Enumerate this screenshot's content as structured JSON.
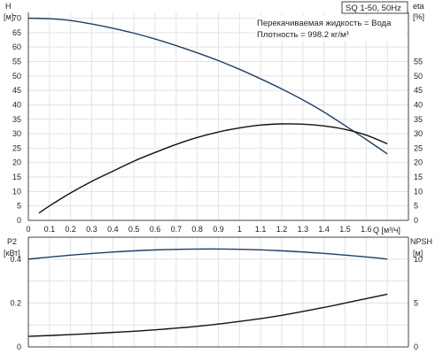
{
  "colors": {
    "dark_blue": "#1f3f66",
    "black": "#111111",
    "grid": "#e3e3e3",
    "axis": "#444444"
  },
  "chart_data": [
    {
      "type": "line",
      "title": "SQ 1-50, 50Hz",
      "annotations": [
        "Перекачиваемая жидкость = Вода",
        "Плотность = 998.2 кг/м³"
      ],
      "xlabel": "Q [м³/ч]",
      "x_unit_label": "Q [м³/ч]",
      "xlim": [
        0,
        1.8
      ],
      "x_ticks": [
        0,
        0.1,
        0.2,
        0.3,
        0.4,
        0.5,
        0.6,
        0.7,
        0.8,
        0.9,
        1.0,
        1.1,
        1.2,
        1.3,
        1.4,
        1.5,
        1.6
      ],
      "grid": true,
      "left_axis": {
        "label_top": "H",
        "label_unit": "[м]",
        "ylim": [
          0,
          72
        ],
        "ticks": [
          0,
          5,
          10,
          15,
          20,
          25,
          30,
          35,
          40,
          45,
          50,
          55,
          60,
          65,
          70
        ]
      },
      "right_axis": {
        "label_top": "eta",
        "label_unit": "[%]",
        "ylim": [
          0,
          72
        ],
        "ticks": [
          0,
          5,
          10,
          15,
          20,
          25,
          30,
          35,
          40,
          45,
          50,
          55
        ]
      },
      "series": [
        {
          "axis": "left",
          "color": "#1f3f66",
          "x": [
            0,
            0.1,
            0.2,
            0.3,
            0.4,
            0.5,
            0.6,
            0.7,
            0.8,
            0.9,
            1.0,
            1.1,
            1.2,
            1.3,
            1.4,
            1.5,
            1.6,
            1.7
          ],
          "values": [
            70.0,
            69.8,
            69.2,
            68.0,
            66.5,
            64.8,
            62.8,
            60.5,
            58.0,
            55.3,
            52.3,
            49.0,
            45.5,
            41.7,
            37.5,
            32.8,
            28.0,
            23.0
          ]
        },
        {
          "axis": "right",
          "color": "#111111",
          "x": [
            0.05,
            0.1,
            0.2,
            0.3,
            0.4,
            0.5,
            0.6,
            0.7,
            0.8,
            0.9,
            1.0,
            1.1,
            1.2,
            1.3,
            1.4,
            1.5,
            1.6,
            1.7
          ],
          "values": [
            2.5,
            5.0,
            9.5,
            13.5,
            17.0,
            20.5,
            23.5,
            26.3,
            28.7,
            30.6,
            32.0,
            33.0,
            33.4,
            33.3,
            32.7,
            31.5,
            29.5,
            26.5
          ]
        }
      ]
    },
    {
      "type": "line",
      "xlim": [
        0,
        1.8
      ],
      "grid": true,
      "left_axis": {
        "label_top": "P2",
        "label_unit": "[кВт]",
        "ylim": [
          0,
          0.5
        ],
        "ticks": [
          0,
          0.2,
          0.4
        ]
      },
      "right_axis": {
        "label_top": "NPSH",
        "label_unit": "[м]",
        "ylim": [
          0,
          12.5
        ],
        "ticks": [
          0,
          5,
          10
        ]
      },
      "series": [
        {
          "axis": "left",
          "color": "#1f3f66",
          "x": [
            0,
            0.2,
            0.4,
            0.6,
            0.8,
            1.0,
            1.2,
            1.4,
            1.6,
            1.7
          ],
          "values": [
            0.4,
            0.418,
            0.432,
            0.442,
            0.446,
            0.445,
            0.438,
            0.426,
            0.41,
            0.4
          ]
        },
        {
          "axis": "right",
          "color": "#111111",
          "x": [
            0,
            0.2,
            0.4,
            0.6,
            0.8,
            1.0,
            1.2,
            1.4,
            1.6,
            1.7
          ],
          "values": [
            1.2,
            1.4,
            1.65,
            1.95,
            2.35,
            2.9,
            3.6,
            4.5,
            5.5,
            6.0
          ]
        }
      ]
    }
  ]
}
